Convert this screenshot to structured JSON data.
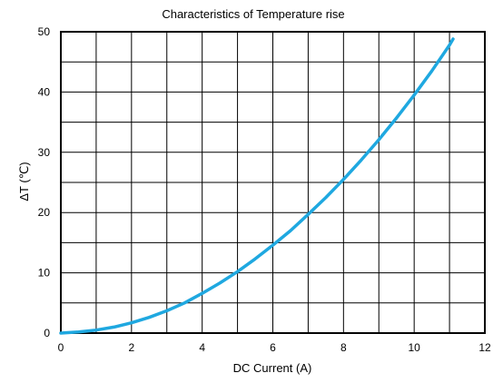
{
  "chart_data": {
    "type": "line",
    "title": "Characteristics of Temperature  rise",
    "xlabel": "DC Current (A)",
    "ylabel": "ΔT (℃)",
    "xlim": [
      0,
      12
    ],
    "ylim": [
      0,
      50
    ],
    "x_ticks": [
      0,
      2,
      4,
      6,
      8,
      10,
      12
    ],
    "y_ticks": [
      0,
      10,
      20,
      30,
      40,
      50
    ],
    "x_tick_labels": [
      "0",
      "2",
      "4",
      "6",
      "8",
      "10",
      "12"
    ],
    "y_tick_labels": [
      "0",
      "10",
      "20",
      "30",
      "40",
      "50"
    ],
    "x_minor_step": 1,
    "y_minor_step": 5,
    "grid": true,
    "legend": "none",
    "series": [
      {
        "color": "#1fa8e0",
        "x": [
          0,
          0.5,
          1,
          1.5,
          2,
          2.5,
          3,
          3.5,
          4,
          4.5,
          5,
          5.5,
          6,
          6.5,
          7,
          7.5,
          8,
          8.5,
          9,
          9.5,
          10,
          10.5,
          11,
          11.1
        ],
        "y": [
          0,
          0.2,
          0.5,
          1.0,
          1.7,
          2.6,
          3.7,
          5.0,
          6.6,
          8.3,
          10.2,
          12.3,
          14.6,
          17.0,
          19.7,
          22.5,
          25.5,
          28.7,
          32.1,
          35.7,
          39.5,
          43.5,
          47.8,
          48.8
        ]
      }
    ]
  }
}
